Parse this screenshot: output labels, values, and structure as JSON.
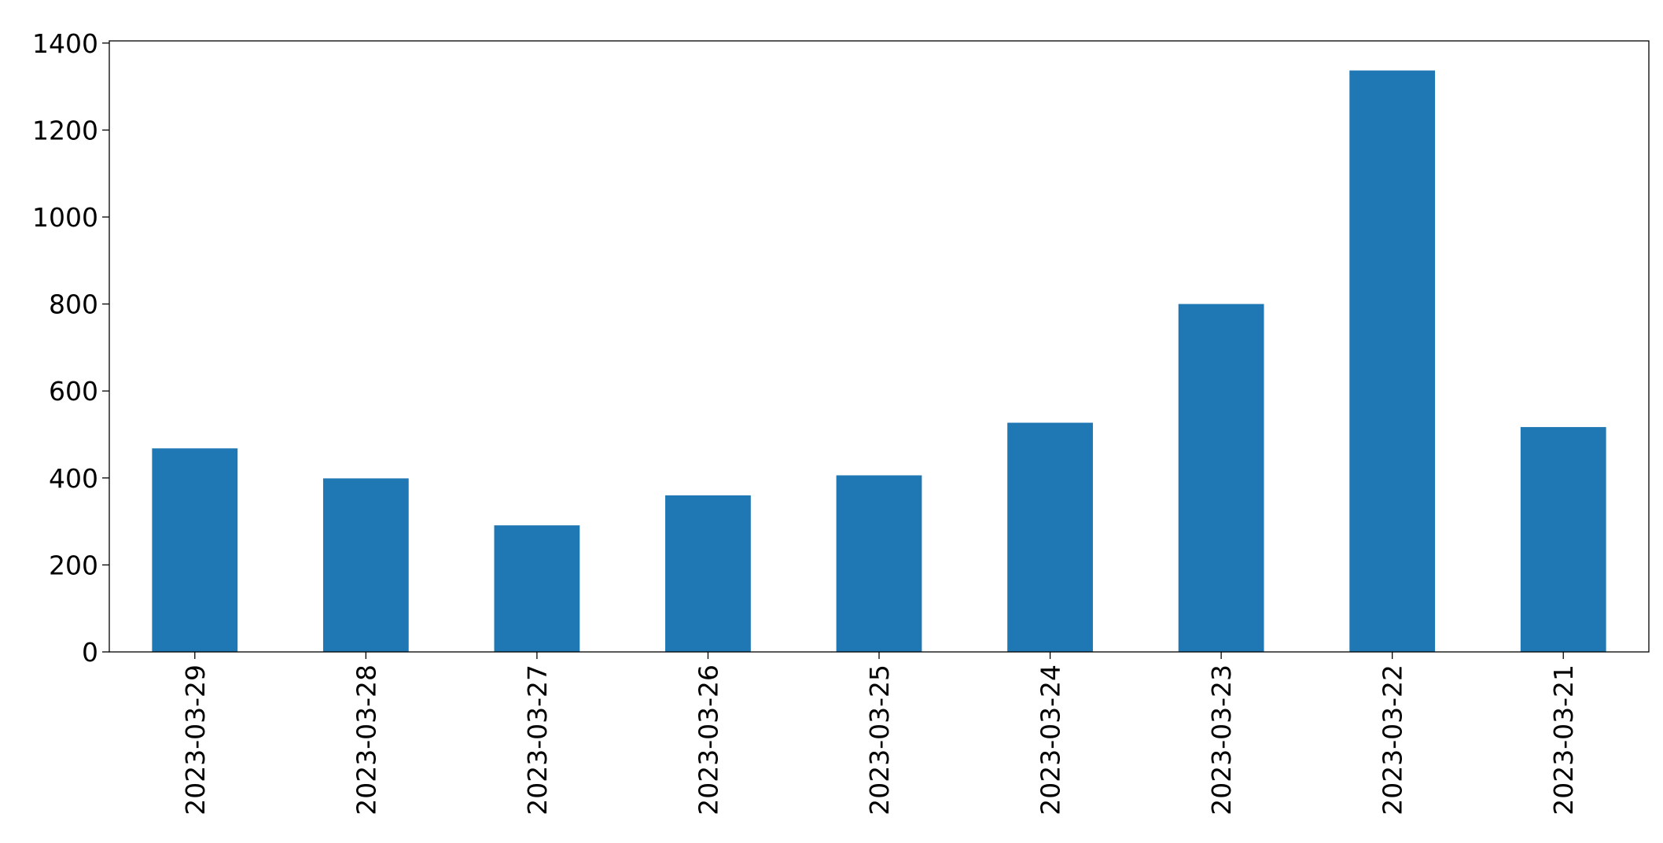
{
  "chart_data": {
    "type": "bar",
    "categories": [
      "2023-03-29",
      "2023-03-28",
      "2023-03-27",
      "2023-03-26",
      "2023-03-25",
      "2023-03-24",
      "2023-03-23",
      "2023-03-22",
      "2023-03-21"
    ],
    "values": [
      468,
      399,
      291,
      360,
      406,
      527,
      800,
      1337,
      517
    ],
    "color": "#1f77b4",
    "ylim": [
      0,
      1405
    ],
    "yticks": [
      0,
      200,
      400,
      600,
      800,
      1000,
      1200,
      1400
    ],
    "grid": false
  }
}
